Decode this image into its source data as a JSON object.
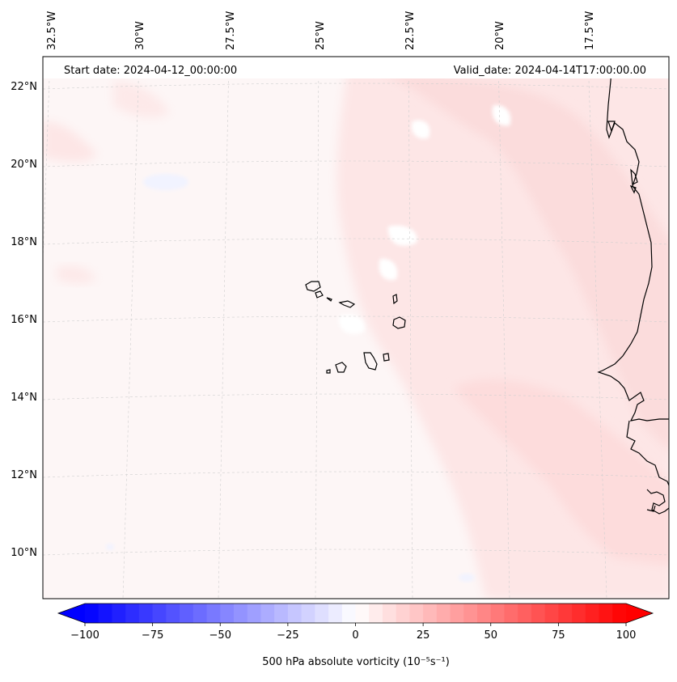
{
  "header": {
    "start_date": "Start date: 2024-04-12_00:00:00",
    "valid_date": "Valid_date: 2024-04-14T17:00:00.00"
  },
  "map": {
    "lon_labels": [
      "32.5°W",
      "30°W",
      "27.5°W",
      "25°W",
      "22.5°W",
      "20°W",
      "17.5°W"
    ],
    "lat_labels": [
      "22°N",
      "20°N",
      "18°N",
      "16°N",
      "14°N",
      "12°N",
      "10°N"
    ],
    "colors": {
      "background": "#fdf6f6",
      "field_light": "#fde9e9",
      "field_medium": "#fbdcdc",
      "field_white": "#ffffff",
      "field_blue": "#f4f5ff",
      "coastline": "#000000",
      "gridline": "#c8c8c8"
    }
  },
  "colorbar": {
    "label": "500 hPa absolute vorticity (10⁻⁵s⁻¹)",
    "min": -100,
    "max": 100,
    "step": 5,
    "ticks": [
      "−100",
      "−75",
      "−50",
      "−25",
      "0",
      "25",
      "50",
      "75",
      "100"
    ],
    "cmap": "bwr"
  }
}
